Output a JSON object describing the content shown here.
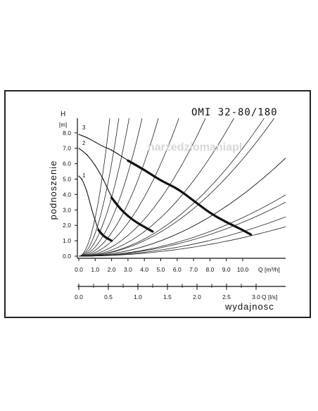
{
  "chart_data": {
    "type": "line",
    "title": "OMI 32-80/180",
    "watermark": "narzedziomaniapl",
    "ylabel": "podnoszenie",
    "y_axis_name": "H",
    "y_unit": "[m]",
    "xlabel": "wydajnosc",
    "x_axis_name": "Q [m³/h]",
    "x2_axis_name": "Q [l/s]",
    "xlim": [
      0,
      12.5
    ],
    "ylim": [
      0,
      8.6
    ],
    "x_ticks": [
      "0.0",
      "1.0",
      "2.0",
      "3.0",
      "4.0",
      "5.0",
      "6.0",
      "7.0",
      "8.0",
      "9.0",
      "10.0"
    ],
    "y_ticks": [
      "0.0",
      "1.0",
      "2.0",
      "3.0",
      "4.0",
      "5.0",
      "6.0",
      "7.0",
      "8.0"
    ],
    "x2_ticks": [
      "0.0",
      "0.5",
      "1.0",
      "1.5",
      "2.0",
      "2.5",
      "3.0"
    ],
    "grid": false,
    "series": [
      {
        "name": "1",
        "x": [
          0.0,
          0.2,
          0.5,
          0.8,
          1.0,
          1.2,
          1.5,
          2.0
        ],
        "y": [
          5.2,
          5.0,
          4.2,
          3.0,
          2.3,
          1.7,
          1.3,
          1.0
        ]
      },
      {
        "name": "2",
        "x": [
          0.0,
          0.5,
          1.0,
          1.5,
          2.0,
          2.5,
          3.0,
          3.5,
          4.0,
          4.5
        ],
        "y": [
          7.0,
          6.6,
          5.9,
          5.0,
          3.8,
          3.1,
          2.6,
          2.2,
          1.9,
          1.6
        ]
      },
      {
        "name": "3",
        "x": [
          0.0,
          0.5,
          1.0,
          1.5,
          2.0,
          3.0,
          4.0,
          5.0,
          6.0,
          7.0,
          8.0,
          9.0,
          10.0,
          10.5
        ],
        "y": [
          7.9,
          7.7,
          7.4,
          7.1,
          6.9,
          6.2,
          5.6,
          4.9,
          4.4,
          3.6,
          2.8,
          2.2,
          1.7,
          1.4
        ]
      }
    ],
    "bold_segments": [
      {
        "curve": "1",
        "x_from": 1.2,
        "x_to": 2.0
      },
      {
        "curve": "2",
        "x_from": 2.0,
        "x_to": 4.5
      },
      {
        "curve": "3",
        "x_from": 3.0,
        "x_to": 10.5
      }
    ],
    "system_curve_coefficients": [
      2.5,
      1.5,
      0.95,
      0.6,
      0.38,
      0.24,
      0.15,
      0.1,
      0.063,
      0.04,
      0.025,
      0.016
    ],
    "efficiency_curve_coefficients": [
      0.07,
      0.04,
      0.022,
      0.012
    ]
  }
}
